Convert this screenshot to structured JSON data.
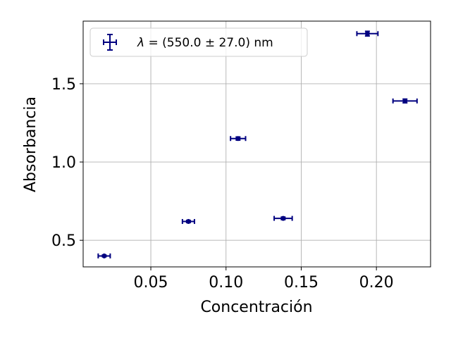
{
  "chart_data": {
    "type": "scatter",
    "xlabel": "Concentración",
    "ylabel": "Absorbancia",
    "xlim": [
      0.005,
      0.236
    ],
    "ylim": [
      0.33,
      1.9
    ],
    "xticks": [
      0.05,
      0.1,
      0.15,
      0.2
    ],
    "xtick_labels": [
      "0.05",
      "0.10",
      "0.15",
      "0.20"
    ],
    "yticks": [
      0.5,
      1.0,
      1.5
    ],
    "ytick_labels": [
      "0.5",
      "1.0",
      "1.5"
    ],
    "grid": true,
    "legend_position": "top-left",
    "series": [
      {
        "name": "λ = (550.0 ± 27.0) nm",
        "legend_prefix": "λ",
        "legend_rest": " = (550.0 ± 27.0) nm",
        "color": "#000080",
        "points": [
          {
            "x": 0.019,
            "y": 0.4,
            "xerr": 0.004,
            "yerr": 0.005
          },
          {
            "x": 0.075,
            "y": 0.62,
            "xerr": 0.004,
            "yerr": 0.007
          },
          {
            "x": 0.108,
            "y": 1.15,
            "xerr": 0.005,
            "yerr": 0.01
          },
          {
            "x": 0.138,
            "y": 0.64,
            "xerr": 0.006,
            "yerr": 0.008
          },
          {
            "x": 0.194,
            "y": 1.82,
            "xerr": 0.007,
            "yerr": 0.015
          },
          {
            "x": 0.219,
            "y": 1.39,
            "xerr": 0.008,
            "yerr": 0.012
          }
        ]
      }
    ]
  }
}
